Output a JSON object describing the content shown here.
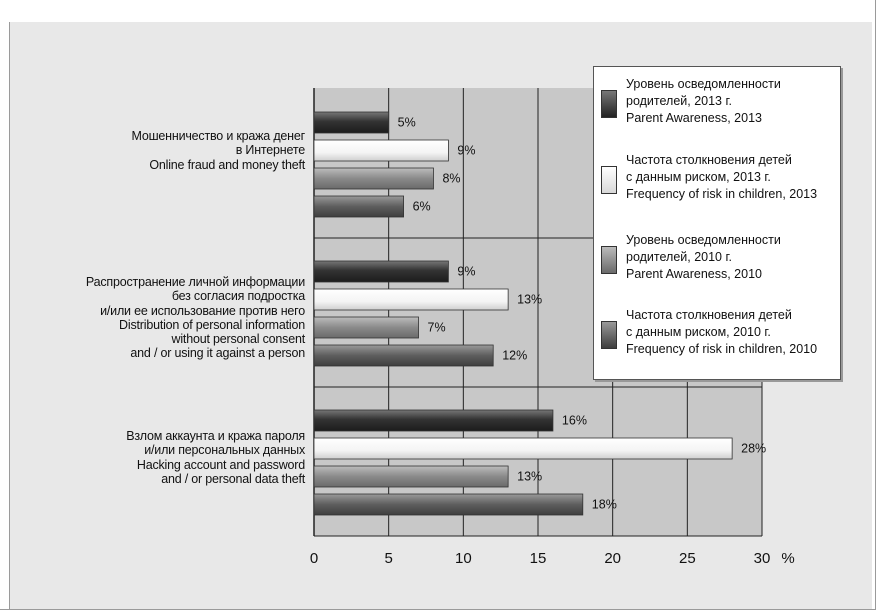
{
  "chart_data": {
    "type": "bar",
    "orientation": "horizontal",
    "categories": [
      "Мошенничество и кража денег\nв Интернете\nOnline fraud and money theft",
      "Распространение личной информации\nбез согласия подростка\nи/или ее использование против него\nDistribution of personal information\nwithout personal consent\nand / or using it against a person",
      "Взлом аккаунта и кража пароля\nи/или персональных данных\nHacking account and password\nand / or personal data theft"
    ],
    "series": [
      {
        "name": "Уровень осведомленности\nродителей, 2013 г.\nParent Awareness, 2013",
        "values": [
          5,
          9,
          16
        ],
        "labels": [
          "5%",
          "9%",
          "16%"
        ]
      },
      {
        "name": "Частота столкновения детей\nс данным риском, 2013 г.\nFrequency of risk in children, 2013",
        "values": [
          9,
          13,
          28
        ],
        "labels": [
          "9%",
          "13%",
          "28%"
        ]
      },
      {
        "name": "Уровень осведомленности\nродителей, 2010 г.\nParent Awareness, 2010",
        "values": [
          8,
          7,
          13
        ],
        "labels": [
          "8%",
          "7%",
          "13%"
        ]
      },
      {
        "name": "Частота столкновения детей\nс данным риском, 2010 г.\nFrequency of risk in children, 2010",
        "values": [
          6,
          12,
          18
        ],
        "labels": [
          "6%",
          "12%",
          "18%"
        ]
      }
    ],
    "xlim": [
      0,
      30
    ],
    "xticks": [
      "0",
      "5",
      "10",
      "15",
      "20",
      "25",
      "30"
    ],
    "xunit": "%",
    "grid": true,
    "legend_position": "top-right",
    "colors": {
      "awareness_2013": "#3a3a3a",
      "frequency_2013": "#ffffff",
      "awareness_2010": "#8a8a8a",
      "frequency_2010": "#5e5e5e",
      "plot_background": "#c8c8c8"
    }
  }
}
